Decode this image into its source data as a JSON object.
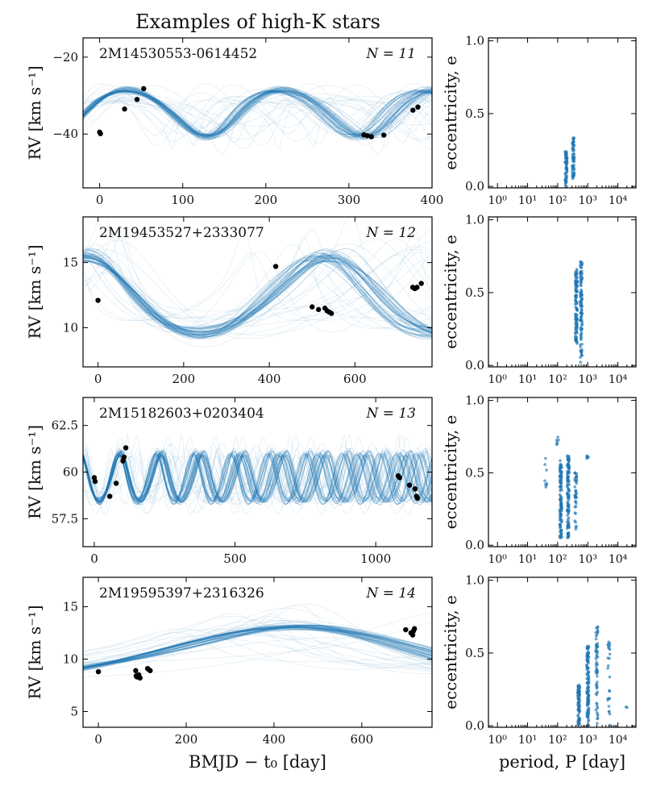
{
  "title": "Examples of high-K stars",
  "colors": {
    "model": "#1f77b4",
    "data": "#000000",
    "frame": "#000000"
  },
  "chart_data": [
    {
      "type": "line",
      "star_id": "2M14530553-0614452",
      "n_label": "N = 11",
      "ylabel": "RV [km s⁻¹]",
      "xlabel": "",
      "xlim": [
        -20,
        400
      ],
      "ylim": [
        -54,
        -15
      ],
      "xticks": [
        0,
        100,
        200,
        300,
        400
      ],
      "yticks": [
        -40,
        -20
      ],
      "model": {
        "period": 185,
        "amplitude": 6,
        "ecc_sign": -1,
        "phase": 0.25,
        "v0": -34
      },
      "observations": [
        {
          "x": 0,
          "y": -39.5
        },
        {
          "x": 1,
          "y": -39.9
        },
        {
          "x": 30,
          "y": -33.5
        },
        {
          "x": 45,
          "y": -31
        },
        {
          "x": 53,
          "y": -28.2
        },
        {
          "x": 318,
          "y": -40.2
        },
        {
          "x": 322,
          "y": -40.4
        },
        {
          "x": 327,
          "y": -40.7
        },
        {
          "x": 342,
          "y": -40.3
        },
        {
          "x": 377,
          "y": -33.8
        },
        {
          "x": 383,
          "y": -33
        }
      ],
      "ecc_panel": {
        "xlabel": "",
        "ylabel": "eccentricity, e",
        "xticks": [
          "10⁰",
          "10¹",
          "10²",
          "10³",
          "10⁴"
        ],
        "yticks": [
          "0.0",
          "0.5",
          "1.0"
        ],
        "xlim_log10": [
          -0.3,
          4.6
        ],
        "ylim": [
          -0.01,
          1.02
        ],
        "clusters": [
          {
            "logP": 2.28,
            "e_min": 0.0,
            "e_max": 0.24,
            "n": 60
          },
          {
            "logP": 2.52,
            "e_min": 0.05,
            "e_max": 0.34,
            "n": 60
          }
        ]
      }
    },
    {
      "type": "line",
      "star_id": "2M19453527+2333077",
      "n_label": "N = 12",
      "ylabel": "RV [km s⁻¹]",
      "xlabel": "",
      "xlim": [
        -35,
        780
      ],
      "ylim": [
        7,
        18.5
      ],
      "xticks": [
        0,
        200,
        400,
        600
      ],
      "yticks": [
        10,
        15
      ],
      "model": {
        "period": 560,
        "amplitude": 3.0,
        "ecc_sign": 1,
        "phase": 0.0,
        "v0": 12.2
      },
      "observations": [
        {
          "x": 0,
          "y": 12.1
        },
        {
          "x": 415,
          "y": 14.7
        },
        {
          "x": 500,
          "y": 11.6
        },
        {
          "x": 515,
          "y": 11.4
        },
        {
          "x": 530,
          "y": 11.5
        },
        {
          "x": 535,
          "y": 11.3
        },
        {
          "x": 540,
          "y": 11.2
        },
        {
          "x": 545,
          "y": 11.1
        },
        {
          "x": 735,
          "y": 13.1
        },
        {
          "x": 740,
          "y": 13.0
        },
        {
          "x": 745,
          "y": 13.1
        },
        {
          "x": 755,
          "y": 13.4
        }
      ],
      "ecc_panel": {
        "xlabel": "",
        "ylabel": "eccentricity, e",
        "xticks": [
          "10⁰",
          "10¹",
          "10²",
          "10³",
          "10⁴"
        ],
        "yticks": [
          "0.0",
          "0.5",
          "1.0"
        ],
        "xlim_log10": [
          -0.3,
          4.6
        ],
        "ylim": [
          -0.01,
          1.02
        ],
        "clusters": [
          {
            "logP": 2.62,
            "e_min": 0.15,
            "e_max": 0.68,
            "n": 110
          },
          {
            "logP": 2.78,
            "e_min": 0.02,
            "e_max": 0.73,
            "n": 110
          }
        ]
      }
    },
    {
      "type": "line",
      "star_id": "2M15182603+0203404",
      "n_label": "N = 13",
      "ylabel": "RV [km s⁻¹]",
      "xlabel": "",
      "xlim": [
        -40,
        1200
      ],
      "ylim": [
        56,
        64
      ],
      "xticks": [
        0,
        500,
        1000
      ],
      "yticks": [
        57.5,
        60.0,
        62.5
      ],
      "model": {
        "period": 140,
        "amplitude": 1.3,
        "ecc_sign": 1,
        "phase": 0.3,
        "v0": 59.6
      },
      "observations": [
        {
          "x": 0,
          "y": 59.7
        },
        {
          "x": 3,
          "y": 59.5
        },
        {
          "x": 55,
          "y": 58.7
        },
        {
          "x": 78,
          "y": 59.4
        },
        {
          "x": 102,
          "y": 60.6
        },
        {
          "x": 106,
          "y": 60.8
        },
        {
          "x": 112,
          "y": 61.3
        },
        {
          "x": 1080,
          "y": 59.8
        },
        {
          "x": 1085,
          "y": 59.7
        },
        {
          "x": 1120,
          "y": 59.3
        },
        {
          "x": 1140,
          "y": 59.1
        },
        {
          "x": 1145,
          "y": 58.7
        },
        {
          "x": 1148,
          "y": 58.6
        }
      ],
      "ecc_panel": {
        "xlabel": "",
        "ylabel": "eccentricity, e",
        "xticks": [
          "10⁰",
          "10¹",
          "10²",
          "10³",
          "10⁴"
        ],
        "yticks": [
          "0.0",
          "0.5",
          "1.0"
        ],
        "xlim_log10": [
          -0.3,
          4.6
        ],
        "ylim": [
          -0.01,
          1.02
        ],
        "clusters": [
          {
            "logP": 2.1,
            "e_min": 0.05,
            "e_max": 0.6,
            "n": 120
          },
          {
            "logP": 2.35,
            "e_min": 0.05,
            "e_max": 0.62,
            "n": 120
          },
          {
            "logP": 2.6,
            "e_min": 0.1,
            "e_max": 0.55,
            "n": 40
          },
          {
            "logP": 1.6,
            "e_min": 0.35,
            "e_max": 0.6,
            "n": 8
          },
          {
            "logP": 2.0,
            "e_min": 0.68,
            "e_max": 0.75,
            "n": 6
          },
          {
            "logP": 3.0,
            "e_min": 0.58,
            "e_max": 0.62,
            "n": 6
          }
        ]
      }
    },
    {
      "type": "line",
      "star_id": "2M19595397+2316326",
      "n_label": "N = 14",
      "ylabel": "RV [km s⁻¹]",
      "xlabel": "BMJD − t₀ [day]",
      "xlim": [
        -35,
        760
      ],
      "ylim": [
        3.5,
        17.8
      ],
      "xticks": [
        0,
        200,
        400,
        600
      ],
      "yticks": [
        5,
        10,
        15
      ],
      "model": {
        "period": 1300,
        "amplitude": 2.3,
        "ecc_sign": 1,
        "phase": 0.6,
        "v0": 10.6
      },
      "observations": [
        {
          "x": 0,
          "y": 8.8
        },
        {
          "x": 85,
          "y": 8.9
        },
        {
          "x": 86,
          "y": 8.4
        },
        {
          "x": 88,
          "y": 8.3
        },
        {
          "x": 92,
          "y": 8.5
        },
        {
          "x": 95,
          "y": 8.2
        },
        {
          "x": 112,
          "y": 9.1
        },
        {
          "x": 115,
          "y": 9.0
        },
        {
          "x": 118,
          "y": 8.9
        },
        {
          "x": 700,
          "y": 12.8
        },
        {
          "x": 712,
          "y": 12.5
        },
        {
          "x": 716,
          "y": 12.3
        },
        {
          "x": 718,
          "y": 12.7
        },
        {
          "x": 720,
          "y": 12.9
        }
      ],
      "ecc_panel": {
        "xlabel": "period, P [day]",
        "ylabel": "eccentricity, e",
        "xticks": [
          "10⁰",
          "10¹",
          "10²",
          "10³",
          "10⁴"
        ],
        "yticks": [
          "0.0",
          "0.5",
          "1.0"
        ],
        "xlim_log10": [
          -0.3,
          4.6
        ],
        "ylim": [
          -0.01,
          1.02
        ],
        "clusters": [
          {
            "logP": 2.7,
            "e_min": 0.0,
            "e_max": 0.28,
            "n": 80
          },
          {
            "logP": 3.0,
            "e_min": 0.0,
            "e_max": 0.55,
            "n": 120
          },
          {
            "logP": 3.3,
            "e_min": 0.0,
            "e_max": 0.7,
            "n": 60
          },
          {
            "logP": 3.7,
            "e_min": 0.0,
            "e_max": 0.6,
            "n": 25
          },
          {
            "logP": 4.3,
            "e_min": 0.12,
            "e_max": 0.14,
            "n": 2
          }
        ]
      }
    }
  ]
}
